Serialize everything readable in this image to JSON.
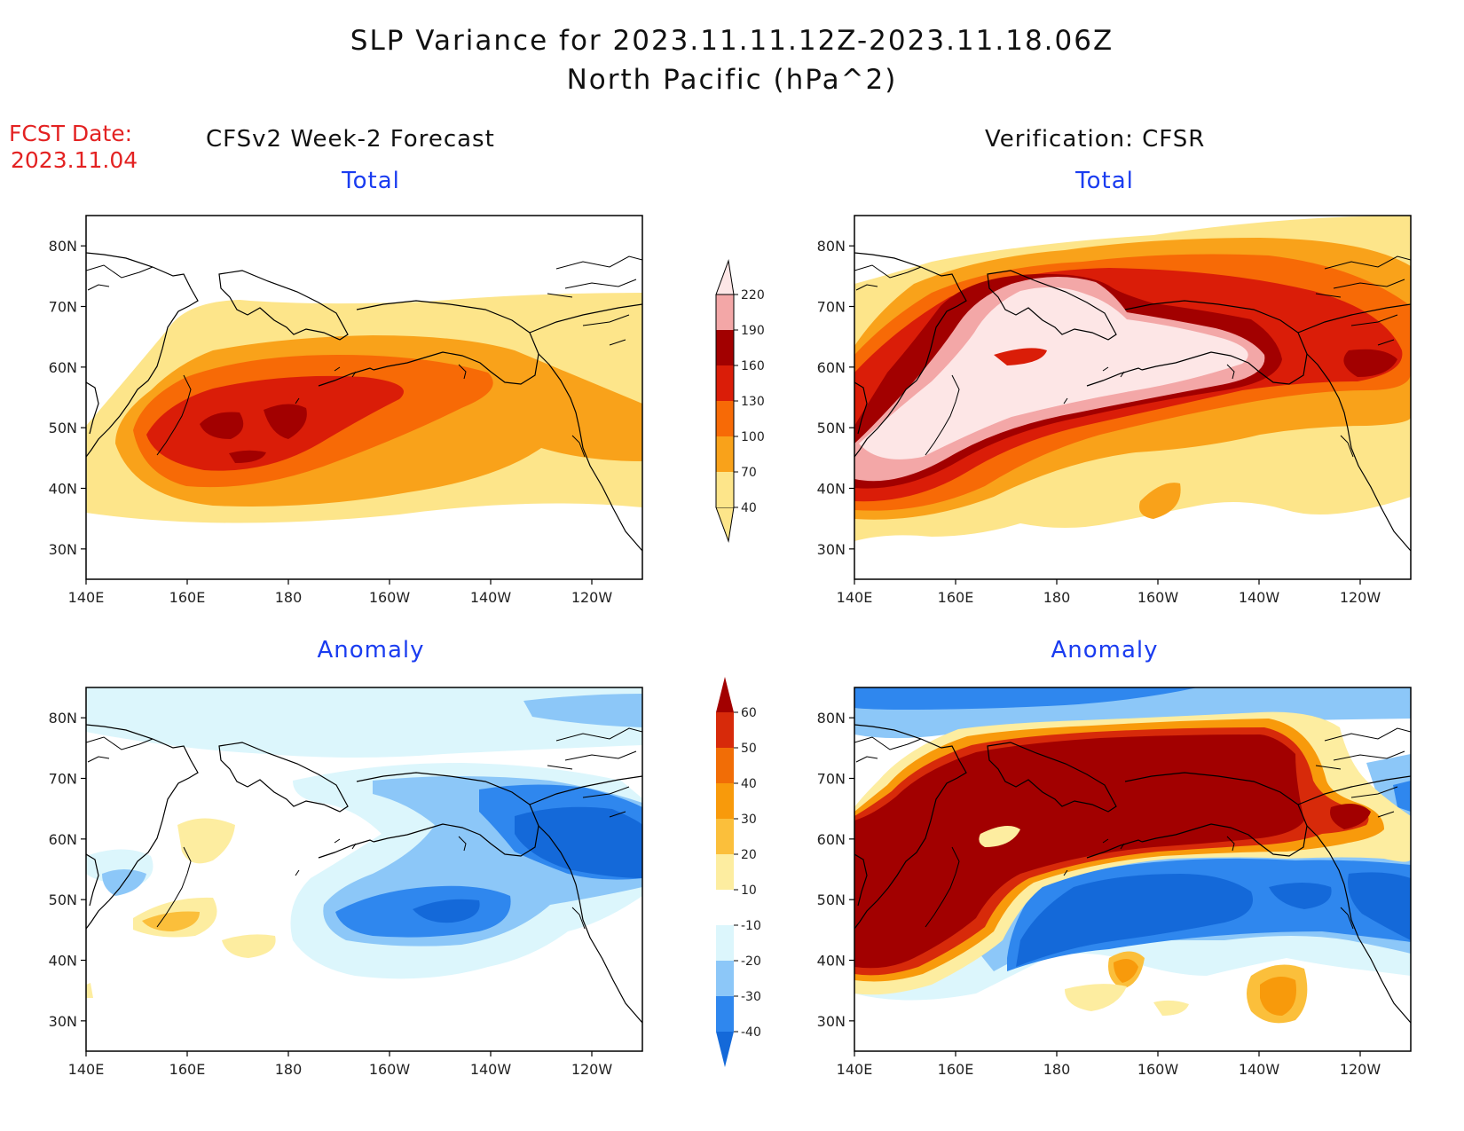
{
  "title": "SLP Variance for 2023.11.11.12Z-2023.11.18.06Z",
  "subtitle": "North Pacific (hPa^2)",
  "fcst_label": "FCST Date:",
  "fcst_date": "2023.11.04",
  "left_heading": "CFSv2 Week-2 Forecast",
  "right_heading": "Verification: CFSR",
  "panels": [
    {
      "id": "fcst-total",
      "title": "Total"
    },
    {
      "id": "verif-total",
      "title": "Total"
    },
    {
      "id": "fcst-anomaly",
      "title": "Anomaly"
    },
    {
      "id": "verif-anomaly",
      "title": "Anomaly"
    }
  ],
  "axes": {
    "lon_labels": [
      "140E",
      "160E",
      "180",
      "160W",
      "140W",
      "120W"
    ],
    "lat_labels": [
      "30N",
      "40N",
      "50N",
      "60N",
      "70N",
      "80N"
    ],
    "lon_values": [
      140,
      160,
      180,
      200,
      220,
      240
    ],
    "lat_values": [
      30,
      40,
      50,
      60,
      70,
      80
    ],
    "lon_range": [
      140,
      250
    ],
    "lat_range": [
      25,
      85
    ]
  },
  "colorbars": {
    "total": {
      "levels": [
        "40",
        "70",
        "100",
        "130",
        "160",
        "190",
        "220"
      ],
      "colors": [
        "#fde58a",
        "#f9a21a",
        "#f76a06",
        "#da1d08",
        "#a20000",
        "#f3a7a7",
        "#fde6e6"
      ]
    },
    "anomaly": {
      "levels": [
        "-40",
        "-30",
        "-20",
        "-10",
        "10",
        "20",
        "30",
        "40",
        "50",
        "60"
      ],
      "colors": [
        "#1469d9",
        "#2f87ee",
        "#8cc7f8",
        "#dcf6fc",
        "#ffffff",
        "#fdeda0",
        "#fbbf3b",
        "#f89a0b",
        "#f16d06",
        "#d72a0a",
        "#a20000"
      ]
    }
  },
  "colors": {
    "title_accent": "#1a3cf0",
    "fcst_text": "#e32222"
  }
}
